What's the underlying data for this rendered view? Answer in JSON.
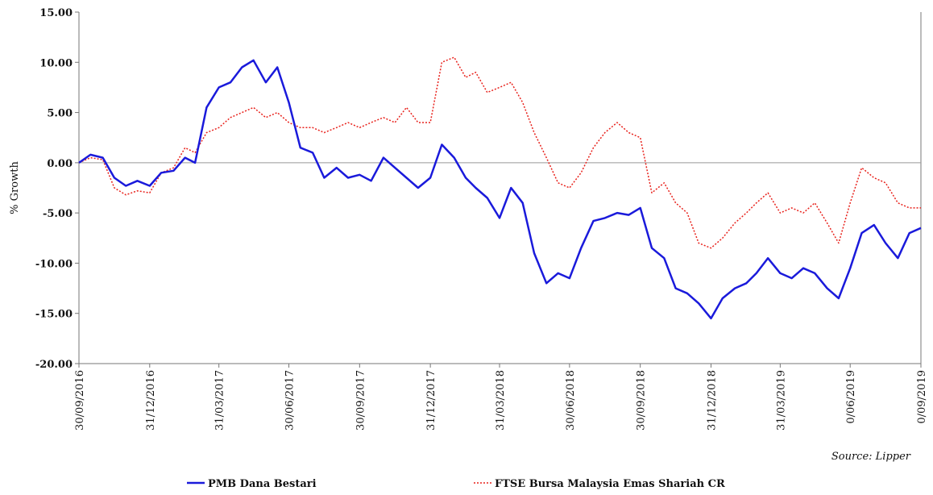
{
  "chart_data": {
    "type": "line",
    "y_label": "% Growth",
    "source": "Source: Lipper",
    "x": [
      "30/09/2016",
      "15/10/2016",
      "31/10/2016",
      "15/11/2016",
      "30/11/2016",
      "15/12/2016",
      "31/12/2016",
      "15/01/2017",
      "31/01/2017",
      "15/02/2017",
      "28/02/2017",
      "15/03/2017",
      "31/03/2017",
      "15/04/2017",
      "30/04/2017",
      "15/05/2017",
      "31/05/2017",
      "15/06/2017",
      "30/06/2017",
      "15/07/2017",
      "31/07/2017",
      "15/08/2017",
      "31/08/2017",
      "15/09/2017",
      "30/09/2017",
      "15/10/2017",
      "31/10/2017",
      "15/11/2017",
      "30/11/2017",
      "15/12/2017",
      "31/12/2017",
      "15/01/2018",
      "31/01/2018",
      "15/02/2018",
      "28/02/2018",
      "15/03/2018",
      "31/03/2018",
      "15/04/2018",
      "30/04/2018",
      "15/05/2018",
      "31/05/2018",
      "15/06/2018",
      "30/06/2018",
      "15/07/2018",
      "31/07/2018",
      "15/08/2018",
      "31/08/2018",
      "15/09/2018",
      "30/09/2018",
      "15/10/2018",
      "31/10/2018",
      "15/11/2018",
      "30/11/2018",
      "15/12/2018",
      "31/12/2018",
      "15/01/2019",
      "31/01/2019",
      "15/02/2019",
      "28/02/2019",
      "15/03/2019",
      "31/03/2019",
      "15/04/2019",
      "30/04/2019",
      "15/05/2019",
      "31/05/2019",
      "15/06/2019",
      "30/06/2019",
      "15/07/2019",
      "31/07/2019",
      "15/08/2019",
      "31/08/2019",
      "15/09/2019",
      "30/09/2019"
    ],
    "series": [
      {
        "name": "PMB Dana Bestari",
        "color": "#1a1adb",
        "style": "solid",
        "values": [
          0.0,
          0.8,
          0.5,
          -1.5,
          -2.3,
          -1.8,
          -2.3,
          -1.0,
          -0.8,
          0.5,
          0.0,
          5.5,
          7.5,
          8.0,
          9.5,
          10.2,
          8.0,
          9.5,
          6.0,
          1.5,
          1.0,
          -1.5,
          -0.5,
          -1.5,
          -1.2,
          -1.8,
          0.5,
          -0.5,
          -1.5,
          -2.5,
          -1.5,
          1.8,
          0.5,
          -1.5,
          -2.5,
          -3.5,
          -5.5,
          -2.5,
          -4.0,
          -9.0,
          -12.0,
          -11.0,
          -11.5,
          -8.5,
          -5.8,
          -5.5,
          -5.0,
          -5.2,
          -4.5,
          -8.5,
          -9.5,
          -12.5,
          -13.0,
          -14.0,
          -15.5,
          -13.5,
          -12.5,
          -12.0,
          -11.0,
          -9.5,
          -11.0,
          -11.5,
          -10.5,
          -11.0,
          -12.5,
          -13.5,
          -10.5,
          -7.0,
          -6.2,
          -8.0,
          -9.5,
          -7.0,
          -6.5
        ]
      },
      {
        "name": "FTSE Bursa Malaysia Emas Shariah CR",
        "color": "#e8221c",
        "style": "dotted",
        "values": [
          0.0,
          0.5,
          0.3,
          -2.5,
          -3.2,
          -2.8,
          -3.0,
          -1.0,
          -0.5,
          1.5,
          1.0,
          3.0,
          3.5,
          4.5,
          5.0,
          5.5,
          4.5,
          5.0,
          4.0,
          3.5,
          3.5,
          3.0,
          3.5,
          4.0,
          3.5,
          4.0,
          4.5,
          4.0,
          5.5,
          4.0,
          4.0,
          10.0,
          10.5,
          8.5,
          9.0,
          7.0,
          7.5,
          8.0,
          6.0,
          3.0,
          0.5,
          -2.0,
          -2.5,
          -1.0,
          1.5,
          3.0,
          4.0,
          3.0,
          2.5,
          -3.0,
          -2.0,
          -4.0,
          -5.0,
          -8.0,
          -8.5,
          -7.5,
          -6.0,
          -5.0,
          -4.0,
          -3.0,
          -5.0,
          -4.5,
          -5.0,
          -4.0,
          -6.0,
          -8.0,
          -4.0,
          -0.5,
          -1.5,
          -2.0,
          -4.0,
          -4.5,
          -4.5
        ]
      }
    ],
    "ylim": [
      -20,
      15
    ],
    "yticks": [
      {
        "value": -20,
        "label": "-20.00"
      },
      {
        "value": -15,
        "label": "-15.00"
      },
      {
        "value": -10,
        "label": "-10.00"
      },
      {
        "value": -5,
        "label": "-5.00"
      },
      {
        "value": 0,
        "label": "0.00"
      },
      {
        "value": 5,
        "label": "5.00"
      },
      {
        "value": 10,
        "label": "10.00"
      },
      {
        "value": 15,
        "label": "15.00"
      }
    ],
    "xticks": [
      "30/09/2016",
      "31/12/2016",
      "31/03/2017",
      "30/06/2017",
      "30/09/2017",
      "31/12/2017",
      "31/03/2018",
      "30/06/2018",
      "30/09/2018",
      "31/12/2018",
      "31/03/2019",
      {
        "value": "30/06/2019",
        "label": "0/06/2019"
      },
      {
        "value": "30/09/2019",
        "label": "0/09/2019"
      }
    ]
  }
}
